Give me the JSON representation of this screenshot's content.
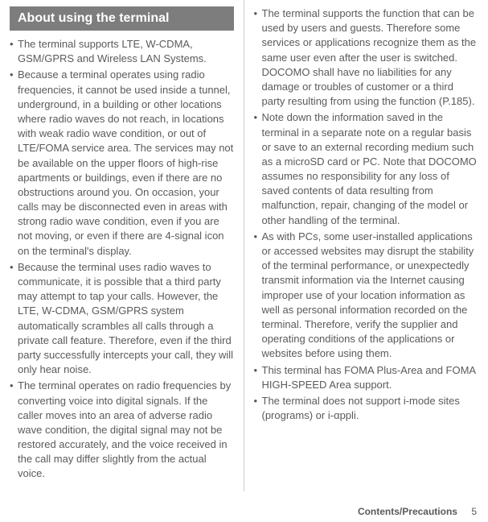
{
  "header": {
    "title": "About using the terminal"
  },
  "leftColumn": {
    "items": [
      "The terminal supports LTE, W-CDMA, GSM/GPRS and Wireless LAN Systems.",
      "Because a terminal operates using radio frequencies, it cannot be used inside a tunnel, underground, in a building or other locations where radio waves do not reach, in locations with weak radio wave condition, or out of LTE/FOMA service area. The services may not be available on the upper floors of high-rise apartments or buildings, even if there are no obstructions around you. On occasion, your calls may be disconnected even in areas with strong radio wave condition, even if you are not moving, or even if there are 4-signal icon on the terminal's display.",
      "Because the terminal uses radio waves to communicate, it is possible that a third party may attempt to tap your calls. However, the LTE, W-CDMA, GSM/GPRS system automatically scrambles all calls through a private call feature. Therefore, even if the third party successfully intercepts your call, they will only hear noise.",
      "The terminal operates on radio frequencies by converting voice into digital signals. If the caller moves into an area of adverse radio wave condition, the digital signal may not be restored accurately, and the voice received in the call may differ slightly from the actual voice."
    ]
  },
  "rightColumn": {
    "items": [
      "The terminal supports the function that can be used by users and guests. Therefore some services or applications recognize them as the same user even after the user is switched. DOCOMO shall have no liabilities for any damage or troubles of customer or a third party resulting from using the function (P.185).",
      "Note down the information saved in the terminal in a separate note on a regular basis or save to an external recording medium such as a microSD card or PC. Note that DOCOMO assumes no responsibility for any loss of saved contents of data resulting from malfunction, repair, changing of the model or other handling of the terminal.",
      "As with PCs, some user-installed applications or accessed websites may disrupt the stability of the terminal performance, or unexpectedly transmit information via the Internet causing improper use of your location information as well as personal information recorded on the terminal. Therefore, verify the supplier and operating conditions of the applications or websites before using them.",
      "This terminal has FOMA Plus-Area and FOMA HIGH-SPEED Area support.",
      "The terminal does not support i-mode sites (programs) or i-αppli."
    ]
  },
  "footer": {
    "section": "Contents/Precautions",
    "page": "5"
  }
}
